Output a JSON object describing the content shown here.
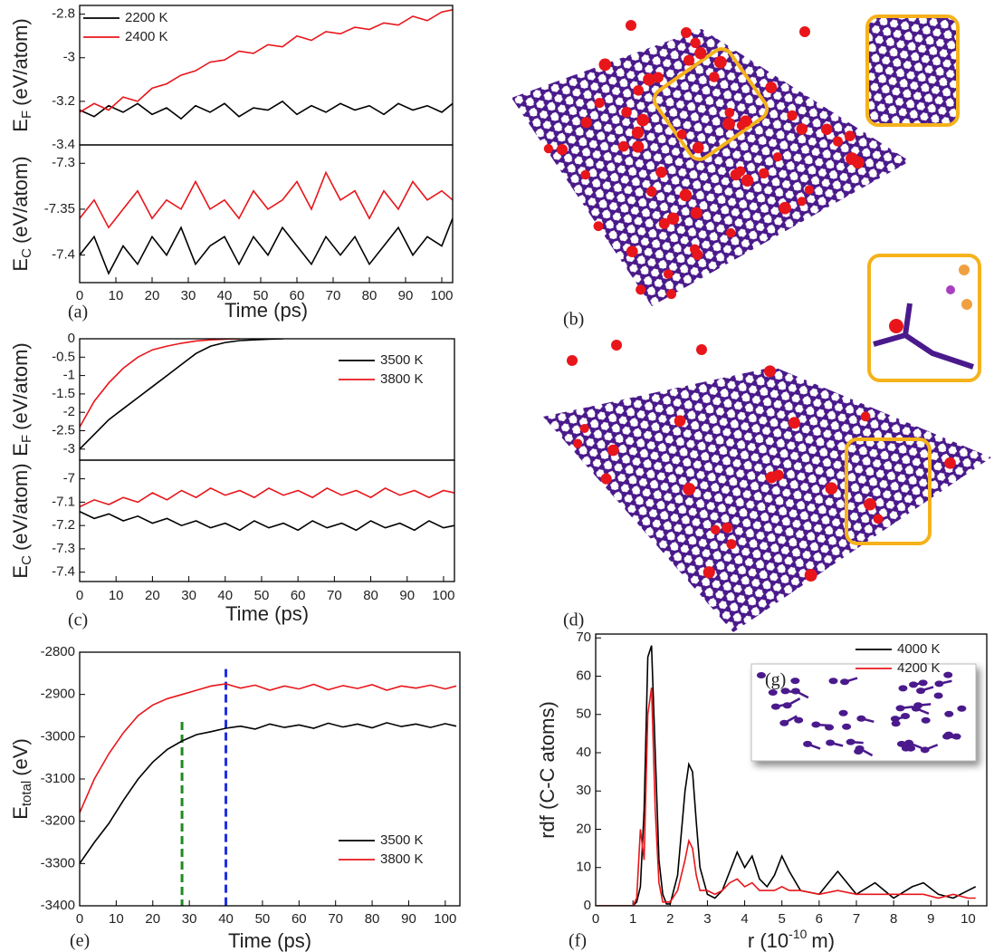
{
  "chart_data": [
    {
      "type": "line",
      "ylabel": {
        "text": "E",
        "sub": "F",
        "unit": "(eV/atom)"
      },
      "xlim": [
        0,
        103
      ],
      "ylim": [
        -3.4,
        -2.76
      ],
      "yticks": [
        -3.4,
        -3.2,
        -3,
        -2.8
      ],
      "legend": "upper left",
      "x": [
        0,
        4,
        8,
        12,
        16,
        20,
        24,
        28,
        32,
        36,
        40,
        44,
        48,
        52,
        56,
        60,
        64,
        68,
        72,
        76,
        80,
        84,
        88,
        92,
        96,
        100,
        103
      ],
      "series": [
        {
          "name": "2200 K",
          "color": "#000000",
          "values": [
            -3.24,
            -3.27,
            -3.22,
            -3.25,
            -3.21,
            -3.26,
            -3.23,
            -3.28,
            -3.22,
            -3.25,
            -3.21,
            -3.27,
            -3.23,
            -3.24,
            -3.2,
            -3.26,
            -3.22,
            -3.25,
            -3.21,
            -3.24,
            -3.22,
            -3.26,
            -3.21,
            -3.24,
            -3.22,
            -3.25,
            -3.21
          ]
        },
        {
          "name": "2400 K",
          "color": "#e8161b",
          "values": [
            -3.25,
            -3.21,
            -3.24,
            -3.18,
            -3.2,
            -3.14,
            -3.12,
            -3.08,
            -3.06,
            -3.02,
            -3.01,
            -2.97,
            -2.98,
            -2.94,
            -2.95,
            -2.9,
            -2.92,
            -2.88,
            -2.89,
            -2.86,
            -2.87,
            -2.84,
            -2.85,
            -2.81,
            -2.83,
            -2.79,
            -2.78
          ]
        }
      ]
    },
    {
      "type": "line",
      "panel_label": "(a)",
      "ylabel": {
        "text": "E",
        "sub": "C",
        "unit": "(eV/atom)"
      },
      "xlabel": "Time (ps)",
      "xlim": [
        0,
        103
      ],
      "ylim": [
        -7.43,
        -7.28
      ],
      "xticks": [
        0,
        10,
        20,
        30,
        40,
        50,
        60,
        70,
        80,
        90,
        100
      ],
      "yticks": [
        -7.4,
        -7.35,
        -7.3
      ],
      "x": [
        0,
        4,
        8,
        12,
        16,
        20,
        24,
        28,
        32,
        36,
        40,
        44,
        48,
        52,
        56,
        60,
        64,
        68,
        72,
        76,
        80,
        84,
        88,
        92,
        96,
        100,
        103
      ],
      "series": [
        {
          "color": "#000000",
          "values": [
            -7.4,
            -7.38,
            -7.42,
            -7.39,
            -7.41,
            -7.38,
            -7.4,
            -7.37,
            -7.41,
            -7.39,
            -7.38,
            -7.41,
            -7.38,
            -7.4,
            -7.37,
            -7.39,
            -7.41,
            -7.38,
            -7.4,
            -7.38,
            -7.41,
            -7.39,
            -7.37,
            -7.4,
            -7.38,
            -7.39,
            -7.36
          ]
        },
        {
          "color": "#e8161b",
          "values": [
            -7.36,
            -7.34,
            -7.37,
            -7.35,
            -7.33,
            -7.36,
            -7.34,
            -7.35,
            -7.32,
            -7.35,
            -7.34,
            -7.36,
            -7.33,
            -7.35,
            -7.34,
            -7.32,
            -7.35,
            -7.31,
            -7.34,
            -7.33,
            -7.36,
            -7.33,
            -7.35,
            -7.32,
            -7.34,
            -7.33,
            -7.34
          ]
        }
      ]
    },
    {
      "type": "line",
      "ylabel": {
        "text": "E",
        "sub": "F",
        "unit": "(eV/atom)"
      },
      "xlim": [
        0,
        103
      ],
      "ylim": [
        -3.3,
        0
      ],
      "yticks": [
        -3,
        -2.5,
        -2,
        -1.5,
        -1,
        -0.5,
        0
      ],
      "legend": "right",
      "x": [
        0,
        4,
        8,
        12,
        16,
        20,
        24,
        28,
        32,
        36,
        40,
        44,
        48,
        52,
        56,
        60,
        64,
        68,
        72,
        76,
        80,
        84,
        88,
        92,
        96,
        100,
        103
      ],
      "series": [
        {
          "name": "3500 K",
          "color": "#000000",
          "values": [
            -3.0,
            -2.6,
            -2.2,
            -1.9,
            -1.6,
            -1.3,
            -1.0,
            -0.7,
            -0.4,
            -0.2,
            -0.1,
            -0.05,
            -0.03,
            -0.01,
            0,
            null,
            null,
            null,
            null,
            null,
            null,
            null,
            null,
            null,
            null,
            null,
            null
          ]
        },
        {
          "name": "3800 K",
          "color": "#e8161b",
          "values": [
            -2.4,
            -1.7,
            -1.2,
            -0.8,
            -0.5,
            -0.3,
            -0.2,
            -0.12,
            -0.06,
            -0.03,
            -0.01,
            0,
            null,
            null,
            null,
            null,
            null,
            null,
            null,
            null,
            null,
            null,
            null,
            null,
            null,
            null,
            null
          ]
        }
      ]
    },
    {
      "type": "line",
      "panel_label": "(c)",
      "ylabel": {
        "text": "E",
        "sub": "C",
        "unit": "(eV/atom)"
      },
      "xlabel": "Time (ps)",
      "xlim": [
        0,
        103
      ],
      "ylim": [
        -7.44,
        -6.92
      ],
      "xticks": [
        0,
        10,
        20,
        30,
        40,
        50,
        60,
        70,
        80,
        90,
        100
      ],
      "yticks": [
        -7.4,
        -7.3,
        -7.2,
        -7.1,
        -7
      ],
      "x": [
        0,
        4,
        8,
        12,
        16,
        20,
        24,
        28,
        32,
        36,
        40,
        44,
        48,
        52,
        56,
        60,
        64,
        68,
        72,
        76,
        80,
        84,
        88,
        92,
        96,
        100,
        103
      ],
      "series": [
        {
          "color": "#000000",
          "values": [
            -7.14,
            -7.17,
            -7.15,
            -7.18,
            -7.16,
            -7.19,
            -7.17,
            -7.2,
            -7.18,
            -7.21,
            -7.19,
            -7.22,
            -7.18,
            -7.21,
            -7.19,
            -7.22,
            -7.18,
            -7.21,
            -7.19,
            -7.22,
            -7.18,
            -7.21,
            -7.19,
            -7.22,
            -7.18,
            -7.21,
            -7.2
          ]
        },
        {
          "color": "#e8161b",
          "values": [
            -7.12,
            -7.09,
            -7.11,
            -7.08,
            -7.1,
            -7.06,
            -7.09,
            -7.05,
            -7.08,
            -7.04,
            -7.07,
            -7.05,
            -7.08,
            -7.04,
            -7.07,
            -7.05,
            -7.08,
            -7.04,
            -7.07,
            -7.05,
            -7.08,
            -7.04,
            -7.07,
            -7.05,
            -7.08,
            -7.05,
            -7.06
          ]
        }
      ]
    },
    {
      "type": "line",
      "panel_label": "(e)",
      "ylabel": {
        "text": "E",
        "sub": "total",
        "unit": "(eV)"
      },
      "xlabel": "Time (ps)",
      "xlim": [
        0,
        104
      ],
      "ylim": [
        -3400,
        -2800
      ],
      "xticks": [
        0,
        10,
        20,
        30,
        40,
        50,
        60,
        70,
        80,
        90,
        100
      ],
      "yticks": [
        -3400,
        -3300,
        -3200,
        -3100,
        -3000,
        -2900,
        -2800
      ],
      "legend": "lower right",
      "x": [
        0,
        4,
        8,
        12,
        16,
        20,
        24,
        28,
        32,
        36,
        40,
        44,
        48,
        52,
        56,
        60,
        64,
        68,
        72,
        76,
        80,
        84,
        88,
        92,
        96,
        100,
        103
      ],
      "series": [
        {
          "name": "3500 K",
          "color": "#000000",
          "values": [
            -3300,
            -3250,
            -3205,
            -3150,
            -3100,
            -3060,
            -3030,
            -3010,
            -2995,
            -2988,
            -2980,
            -2975,
            -2982,
            -2970,
            -2978,
            -2972,
            -2980,
            -2968,
            -2977,
            -2970,
            -2979,
            -2967,
            -2976,
            -2970,
            -2978,
            -2969,
            -2975
          ]
        },
        {
          "name": "3800 K",
          "color": "#e8161b",
          "values": [
            -3180,
            -3100,
            -3040,
            -2990,
            -2950,
            -2925,
            -2910,
            -2900,
            -2890,
            -2880,
            -2875,
            -2885,
            -2878,
            -2890,
            -2880,
            -2887,
            -2876,
            -2889,
            -2879,
            -2886,
            -2877,
            -2890,
            -2880,
            -2885,
            -2878,
            -2887,
            -2880
          ]
        }
      ],
      "vlines": [
        {
          "x": 28,
          "y_top": -2965,
          "color": "#1e8c1e"
        },
        {
          "x": 40,
          "y_top": -2840,
          "color": "#1f2fe0"
        }
      ]
    },
    {
      "type": "line",
      "panel_label": "(f)",
      "inset_label": "(g)",
      "ylabel": "rdf (C-C atoms)",
      "xlabel": {
        "text": "r (10",
        "sup": "-10",
        "unit": "m)"
      },
      "xlim": [
        0,
        10.5
      ],
      "ylim": [
        0,
        71
      ],
      "xticks": [
        0,
        1,
        2,
        3,
        4,
        5,
        6,
        7,
        8,
        9,
        10
      ],
      "yticks": [
        0,
        10,
        20,
        30,
        40,
        50,
        60,
        70
      ],
      "legend": "upper right",
      "x": [
        0,
        0.5,
        1.0,
        1.1,
        1.2,
        1.3,
        1.4,
        1.5,
        1.6,
        1.7,
        1.8,
        1.9,
        2.0,
        2.2,
        2.4,
        2.5,
        2.6,
        2.7,
        2.8,
        3.0,
        3.2,
        3.4,
        3.6,
        3.8,
        4.0,
        4.2,
        4.4,
        4.6,
        4.8,
        5.0,
        5.2,
        5.5,
        6.0,
        6.5,
        7.0,
        7.5,
        8.0,
        8.5,
        8.8,
        9.2,
        9.6,
        10.0,
        10.2
      ],
      "series": [
        {
          "name": "4000 K",
          "color": "#000000",
          "values": [
            0,
            0,
            0,
            1,
            5,
            25,
            65,
            68,
            40,
            12,
            3,
            0.5,
            0.5,
            8,
            30,
            37,
            35,
            22,
            10,
            3,
            2,
            4,
            9,
            14,
            10,
            13,
            7,
            5,
            8,
            13,
            9,
            4,
            3,
            9,
            3,
            6,
            2,
            5,
            6,
            3,
            2,
            4,
            5
          ]
        },
        {
          "name": "4200 K",
          "color": "#e8161b",
          "values": [
            0,
            0,
            0,
            2,
            20,
            12,
            50,
            57,
            25,
            6,
            1,
            1,
            1,
            4,
            12,
            17,
            15,
            8,
            4,
            4,
            3,
            4,
            6,
            7,
            5,
            6,
            4,
            4,
            4,
            5,
            4,
            4,
            3,
            4,
            3,
            3,
            3,
            3,
            3,
            2,
            3,
            2,
            2
          ]
        }
      ]
    }
  ],
  "images": [
    {
      "label": "(b)"
    },
    {
      "label": "(d)"
    }
  ]
}
